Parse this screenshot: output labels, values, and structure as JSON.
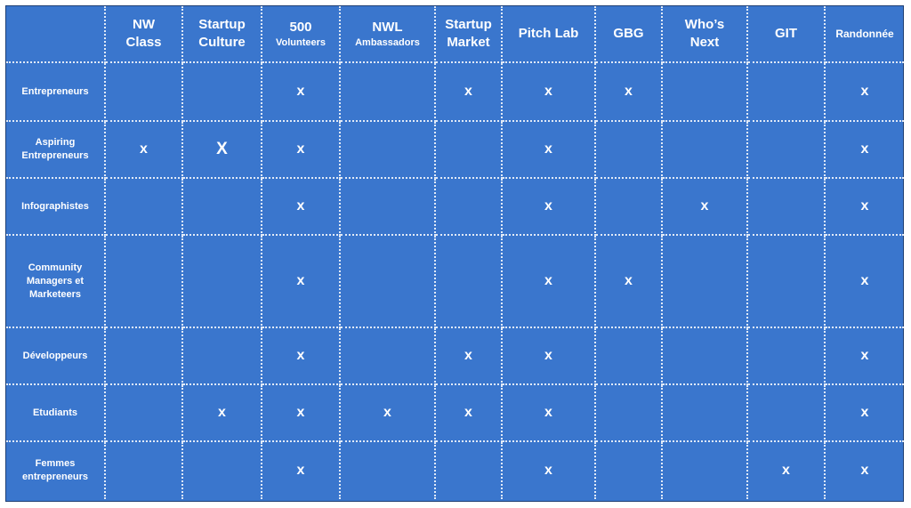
{
  "chart_data": {
    "type": "table",
    "columns": [
      {
        "main": "NW\nClass",
        "sub": ""
      },
      {
        "main": "Startup\nCulture",
        "sub": ""
      },
      {
        "main": "500",
        "sub": "Volunteers"
      },
      {
        "main": "NWL",
        "sub": "Ambassadors"
      },
      {
        "main": "Startup\nMarket",
        "sub": ""
      },
      {
        "main": "Pitch Lab",
        "sub": ""
      },
      {
        "main": "GBG",
        "sub": ""
      },
      {
        "main": "Who’s\nNext",
        "sub": ""
      },
      {
        "main": "GIT",
        "sub": ""
      },
      {
        "main": "Randonnée",
        "sub": ""
      }
    ],
    "rows": [
      {
        "label": "Entrepreneurs",
        "marks": [
          "",
          "",
          "x",
          "",
          "x",
          "x",
          "x",
          "",
          "",
          "x"
        ]
      },
      {
        "label": "Aspiring\nEntrepreneurs",
        "marks": [
          "x",
          "X",
          "x",
          "",
          "",
          "x",
          "",
          "",
          "",
          "x"
        ]
      },
      {
        "label": "Infographistes",
        "marks": [
          "",
          "",
          "x",
          "",
          "",
          "x",
          "",
          "x",
          "",
          "x"
        ]
      },
      {
        "label": "Community\nManagers et\nMarketeers",
        "marks": [
          "",
          "",
          "x",
          "",
          "",
          "x",
          "x",
          "",
          "",
          "x"
        ]
      },
      {
        "label": "Développeurs",
        "marks": [
          "",
          "",
          "x",
          "",
          "x",
          "x",
          "",
          "",
          "",
          "x"
        ]
      },
      {
        "label": "Etudiants",
        "marks": [
          "",
          "x",
          "x",
          "x",
          "x",
          "x",
          "",
          "",
          "",
          "x"
        ]
      },
      {
        "label": "Femmes\nentrepreneurs",
        "marks": [
          "",
          "",
          "x",
          "",
          "",
          "x",
          "",
          "",
          "x",
          "x"
        ]
      }
    ],
    "colors": {
      "background": "#3a76cd",
      "text": "#ffffff",
      "gridline": "#ffffff"
    },
    "grid": true
  }
}
